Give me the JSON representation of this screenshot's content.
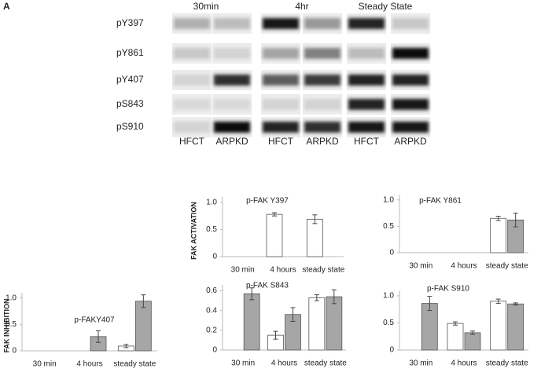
{
  "figure_label": "A",
  "blot": {
    "conditions": [
      "30min",
      "4hr",
      "Steady State"
    ],
    "rows": [
      "pY397",
      "pY861",
      "pY407",
      "pS843",
      "pS910"
    ],
    "lanes": [
      "HFCT",
      "ARPKD",
      "HFCT",
      "ARPKD",
      "HFCT",
      "ARPKD"
    ]
  },
  "chart_data": [
    {
      "type": "bar",
      "title": "p-FAK Y397",
      "ylabel": "FAK ACTIVATION",
      "categories": [
        "30 min",
        "4 hours",
        "steady state"
      ],
      "series": [
        {
          "color": "#ffffff",
          "values": [
            null,
            0.78,
            0.69
          ],
          "errors": [
            null,
            0.03,
            0.08
          ]
        },
        {
          "color": "#a6a6a6",
          "values": [
            null,
            null,
            null
          ],
          "errors": [
            null,
            null,
            null
          ]
        }
      ],
      "ylim": [
        0,
        1.1
      ],
      "yticks": [
        0,
        0.5,
        {
          "value": 1,
          "label": "1.0"
        }
      ]
    },
    {
      "type": "bar",
      "title": "p-FAK Y861",
      "categories": [
        "30 min",
        "4 hours",
        "steady state"
      ],
      "series": [
        {
          "color": "#ffffff",
          "values": [
            null,
            null,
            0.65
          ],
          "errors": [
            null,
            null,
            0.04
          ]
        },
        {
          "color": "#a6a6a6",
          "values": [
            null,
            null,
            0.62
          ],
          "errors": [
            null,
            null,
            0.13
          ]
        }
      ],
      "ylim": [
        0,
        1.1
      ],
      "yticks": [
        0,
        0.5,
        {
          "value": 1,
          "label": "1.0"
        }
      ]
    },
    {
      "type": "bar",
      "title": "p-FAKY407",
      "ylabel": "FAK INHIBITION",
      "categories": [
        "30 min",
        "4 hours",
        "steady state"
      ],
      "series": [
        {
          "color": "#ffffff",
          "values": [
            null,
            null,
            0.09
          ],
          "errors": [
            null,
            null,
            0.03
          ]
        },
        {
          "color": "#a6a6a6",
          "values": [
            null,
            0.27,
            0.94
          ],
          "errors": [
            null,
            0.11,
            0.12
          ]
        }
      ],
      "ylim": [
        0,
        1.1
      ],
      "yticks": [
        0,
        0.5,
        {
          "value": 1,
          "label": "1.0"
        }
      ]
    },
    {
      "type": "bar",
      "title": "p-FAK S843",
      "categories": [
        "30 min",
        "4 hours",
        "steady state"
      ],
      "series": [
        {
          "color": "#ffffff",
          "values": [
            null,
            0.15,
            0.53
          ],
          "errors": [
            null,
            0.04,
            0.03
          ]
        },
        {
          "color": "#a6a6a6",
          "values": [
            0.57,
            0.36,
            0.54
          ],
          "errors": [
            0.06,
            0.07,
            0.07
          ]
        }
      ],
      "ylim": [
        0,
        0.66
      ],
      "yticks": [
        0,
        0.2,
        0.4,
        0.6
      ]
    },
    {
      "type": "bar",
      "title": "p-FAK S910",
      "categories": [
        "30 min",
        "4 hours",
        "steady state"
      ],
      "series": [
        {
          "color": "#ffffff",
          "values": [
            null,
            0.49,
            0.9
          ],
          "errors": [
            null,
            0.03,
            0.04
          ]
        },
        {
          "color": "#a6a6a6",
          "values": [
            0.86,
            0.32,
            0.85
          ],
          "errors": [
            0.13,
            0.03,
            0.02
          ]
        }
      ],
      "ylim": [
        0,
        1.1
      ],
      "yticks": [
        0,
        0.5,
        {
          "value": 1,
          "label": "1.0"
        }
      ]
    }
  ]
}
